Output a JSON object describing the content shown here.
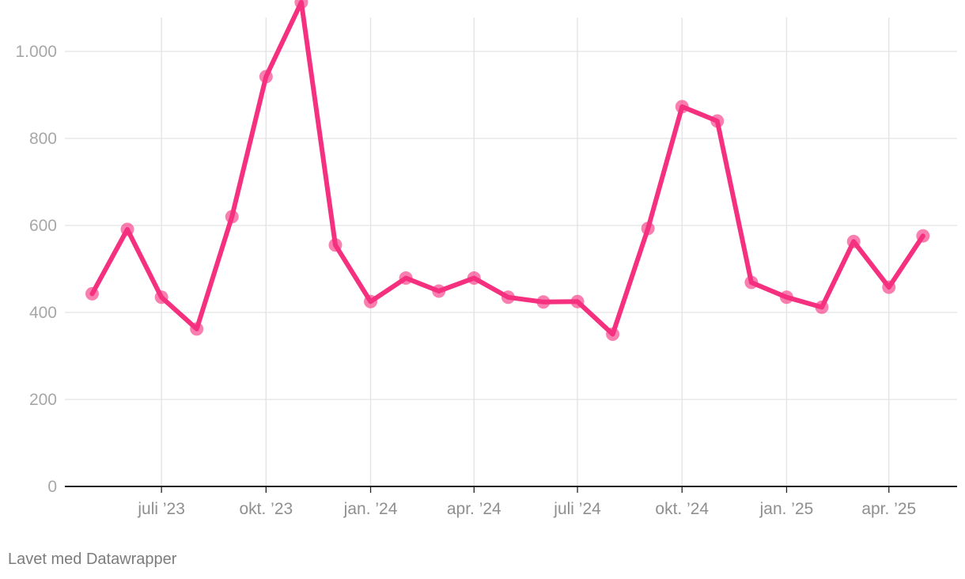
{
  "chart_data": {
    "type": "line",
    "y_ticks": [
      0,
      200,
      400,
      600,
      800,
      1000
    ],
    "y_tick_labels": [
      "0",
      "200",
      "400",
      "600",
      "800",
      "1.000"
    ],
    "ylim": [
      0,
      1100
    ],
    "x_tick_dates": [
      "2023-07-01",
      "2023-10-01",
      "2024-01-01",
      "2024-04-01",
      "2024-07-01",
      "2024-10-01",
      "2025-01-01",
      "2025-04-01"
    ],
    "x_tick_labels": [
      "juli ’23",
      "okt. ’23",
      "jan. ’24",
      "apr. ’24",
      "juli ’24",
      "okt. ’24",
      "jan. ’25",
      "apr. ’25"
    ],
    "xlim": [
      "2023-04-07",
      "2025-05-31"
    ],
    "grid": true,
    "line_color": "#f5307f",
    "series": [
      {
        "x": [
          "2023-05-01",
          "2023-06-01",
          "2023-07-01",
          "2023-08-01",
          "2023-09-01",
          "2023-10-01",
          "2023-11-01",
          "2023-12-01",
          "2024-01-01",
          "2024-02-01",
          "2024-03-01",
          "2024-04-01",
          "2024-05-01",
          "2024-06-01",
          "2024-07-01",
          "2024-08-01",
          "2024-09-01",
          "2024-10-01",
          "2024-11-01",
          "2024-12-01",
          "2025-01-01",
          "2025-02-01",
          "2025-03-01",
          "2025-04-01",
          "2025-05-01"
        ],
        "values": [
          443,
          591,
          435,
          362,
          620,
          942,
          1113,
          555,
          425,
          479,
          449,
          479,
          435,
          424,
          425,
          350,
          593,
          873,
          840,
          469,
          435,
          412,
          563,
          458,
          576
        ]
      }
    ]
  },
  "footer": {
    "credit": "Lavet med Datawrapper"
  }
}
